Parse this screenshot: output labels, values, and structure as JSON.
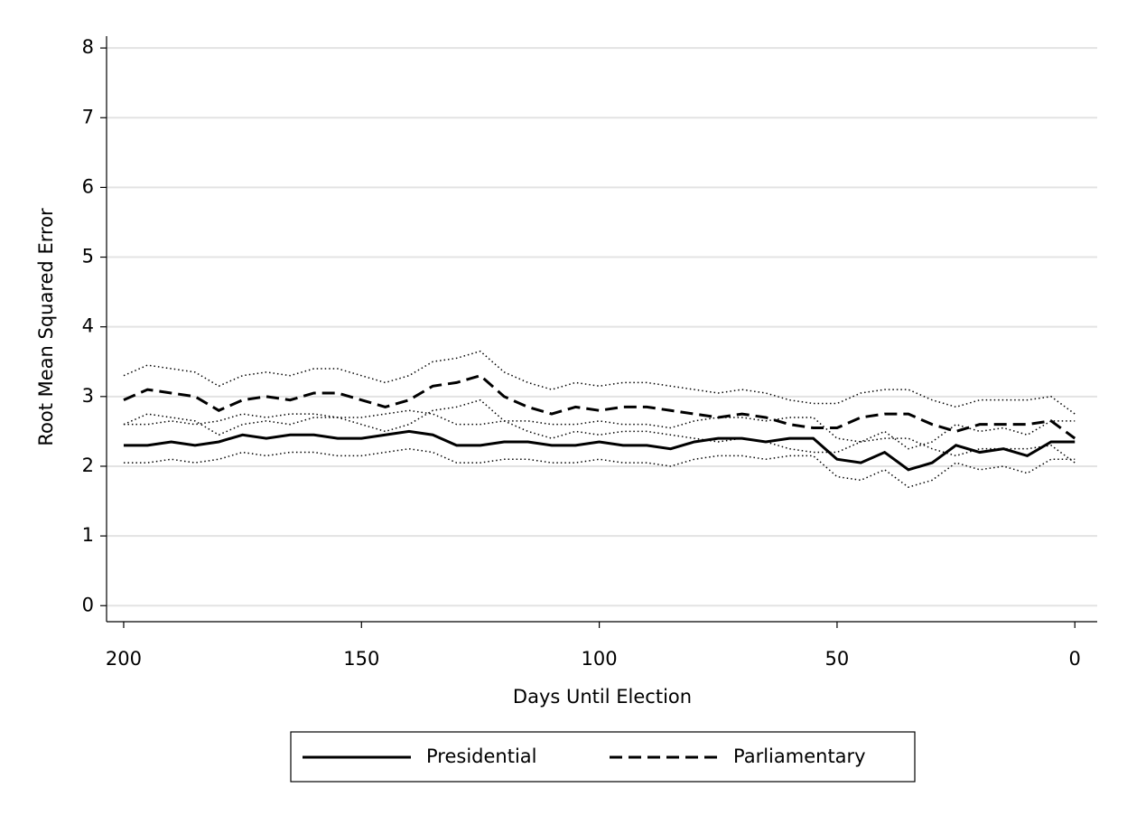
{
  "chart_data": {
    "type": "line",
    "x_label": "Days Until Election",
    "y_label": "Root Mean Squared Error",
    "x": [
      200,
      195,
      190,
      185,
      180,
      175,
      170,
      165,
      160,
      155,
      150,
      145,
      140,
      135,
      130,
      125,
      120,
      115,
      110,
      105,
      100,
      95,
      90,
      85,
      80,
      75,
      70,
      65,
      60,
      55,
      50,
      45,
      40,
      35,
      30,
      25,
      20,
      15,
      10,
      5,
      0
    ],
    "xlim": [
      203.6,
      -4.7
    ],
    "xticks": [
      200,
      150,
      100,
      50,
      0
    ],
    "ylim": [
      -0.23,
      8.17
    ],
    "yticks": [
      0,
      1,
      2,
      3,
      4,
      5,
      6,
      7,
      8
    ],
    "grid": true,
    "series": [
      {
        "name": "Presidential",
        "color": "#000000",
        "dash": "solid",
        "values": [
          2.3,
          2.3,
          2.35,
          2.3,
          2.35,
          2.45,
          2.4,
          2.45,
          2.45,
          2.4,
          2.4,
          2.45,
          2.5,
          2.45,
          2.3,
          2.3,
          2.35,
          2.35,
          2.3,
          2.3,
          2.35,
          2.3,
          2.3,
          2.25,
          2.35,
          2.4,
          2.4,
          2.35,
          2.4,
          2.4,
          2.1,
          2.05,
          2.2,
          1.95,
          2.05,
          2.3,
          2.2,
          2.25,
          2.15,
          2.35,
          2.35
        ],
        "upper": [
          2.6,
          2.6,
          2.65,
          2.6,
          2.65,
          2.75,
          2.7,
          2.75,
          2.75,
          2.7,
          2.7,
          2.75,
          2.8,
          2.75,
          2.6,
          2.6,
          2.65,
          2.65,
          2.6,
          2.6,
          2.65,
          2.6,
          2.6,
          2.55,
          2.65,
          2.7,
          2.7,
          2.65,
          2.7,
          2.7,
          2.4,
          2.35,
          2.5,
          2.25,
          2.35,
          2.6,
          2.5,
          2.55,
          2.45,
          2.65,
          2.65
        ],
        "lower": [
          2.05,
          2.05,
          2.1,
          2.05,
          2.1,
          2.2,
          2.15,
          2.2,
          2.2,
          2.15,
          2.15,
          2.2,
          2.25,
          2.2,
          2.05,
          2.05,
          2.1,
          2.1,
          2.05,
          2.05,
          2.1,
          2.05,
          2.05,
          2.0,
          2.1,
          2.15,
          2.15,
          2.1,
          2.15,
          2.15,
          1.85,
          1.8,
          1.95,
          1.7,
          1.8,
          2.05,
          1.95,
          2.0,
          1.9,
          2.1,
          2.1
        ]
      },
      {
        "name": "Parliamentary",
        "color": "#000000",
        "dash": "dashed",
        "values": [
          2.95,
          3.1,
          3.05,
          3.0,
          2.8,
          2.95,
          3.0,
          2.95,
          3.05,
          3.05,
          2.95,
          2.85,
          2.95,
          3.15,
          3.2,
          3.3,
          3.0,
          2.85,
          2.75,
          2.85,
          2.8,
          2.85,
          2.85,
          2.8,
          2.75,
          2.7,
          2.75,
          2.7,
          2.6,
          2.55,
          2.55,
          2.7,
          2.75,
          2.75,
          2.6,
          2.5,
          2.6,
          2.6,
          2.6,
          2.65,
          2.4
        ],
        "upper": [
          3.3,
          3.45,
          3.4,
          3.35,
          3.15,
          3.3,
          3.35,
          3.3,
          3.4,
          3.4,
          3.3,
          3.2,
          3.3,
          3.5,
          3.55,
          3.65,
          3.35,
          3.2,
          3.1,
          3.2,
          3.15,
          3.2,
          3.2,
          3.15,
          3.1,
          3.05,
          3.1,
          3.05,
          2.95,
          2.9,
          2.9,
          3.05,
          3.1,
          3.1,
          2.95,
          2.85,
          2.95,
          2.95,
          2.95,
          3.0,
          2.75
        ],
        "lower": [
          2.6,
          2.75,
          2.7,
          2.65,
          2.45,
          2.6,
          2.65,
          2.6,
          2.7,
          2.7,
          2.6,
          2.5,
          2.6,
          2.8,
          2.85,
          2.95,
          2.65,
          2.5,
          2.4,
          2.5,
          2.45,
          2.5,
          2.5,
          2.45,
          2.4,
          2.35,
          2.4,
          2.35,
          2.25,
          2.2,
          2.2,
          2.35,
          2.4,
          2.4,
          2.25,
          2.15,
          2.25,
          2.25,
          2.25,
          2.3,
          2.05
        ]
      }
    ]
  }
}
